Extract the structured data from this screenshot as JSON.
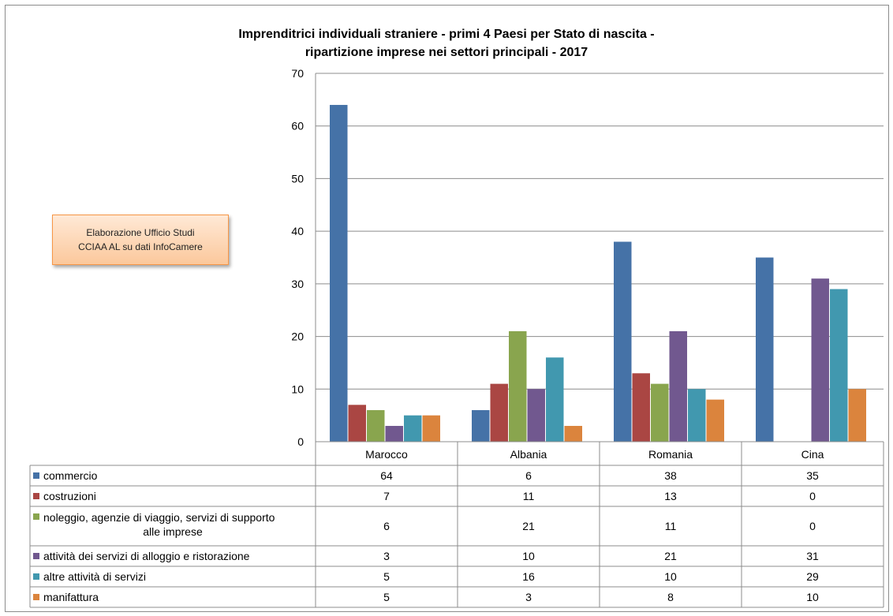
{
  "chart_data": {
    "type": "bar",
    "title_lines": [
      "Imprenditrici individuali straniere - primi 4 Paesi per Stato di nascita -",
      "ripartizione imprese nei settori principali - 2017"
    ],
    "categories": [
      "Marocco",
      "Albania",
      "Romania",
      "Cina"
    ],
    "ylim": [
      0,
      70
    ],
    "yticks": [
      0,
      10,
      20,
      30,
      40,
      50,
      60,
      70
    ],
    "grid": true,
    "legend": "data-table",
    "series": [
      {
        "name": "commercio",
        "label_lines": [
          "commercio"
        ],
        "color": "#4572a7",
        "values": [
          64,
          6,
          38,
          35
        ]
      },
      {
        "name": "costruzioni",
        "label_lines": [
          "costruzioni"
        ],
        "color": "#aa4643",
        "values": [
          7,
          11,
          13,
          0
        ]
      },
      {
        "name": "noleggio, agenzie di viaggio, servizi di supporto alle imprese",
        "label_lines": [
          "noleggio, agenzie di viaggio, servizi di supporto",
          "alle imprese"
        ],
        "color": "#89a54e",
        "values": [
          6,
          21,
          11,
          0
        ]
      },
      {
        "name": "attività dei servizi di alloggio e ristorazione",
        "label_lines": [
          "attività dei servizi di alloggio e ristorazione"
        ],
        "color": "#71588f",
        "values": [
          3,
          10,
          21,
          31
        ]
      },
      {
        "name": "altre attività di servizi",
        "label_lines": [
          "altre attività di servizi"
        ],
        "color": "#4198af",
        "values": [
          5,
          16,
          10,
          29
        ]
      },
      {
        "name": "manifattura",
        "label_lines": [
          "manifattura"
        ],
        "color": "#db843d",
        "values": [
          5,
          3,
          8,
          10
        ]
      }
    ]
  },
  "note": {
    "line1": "Elaborazione Ufficio Studi",
    "line2": "CCIAA AL su dati InfoCamere"
  }
}
